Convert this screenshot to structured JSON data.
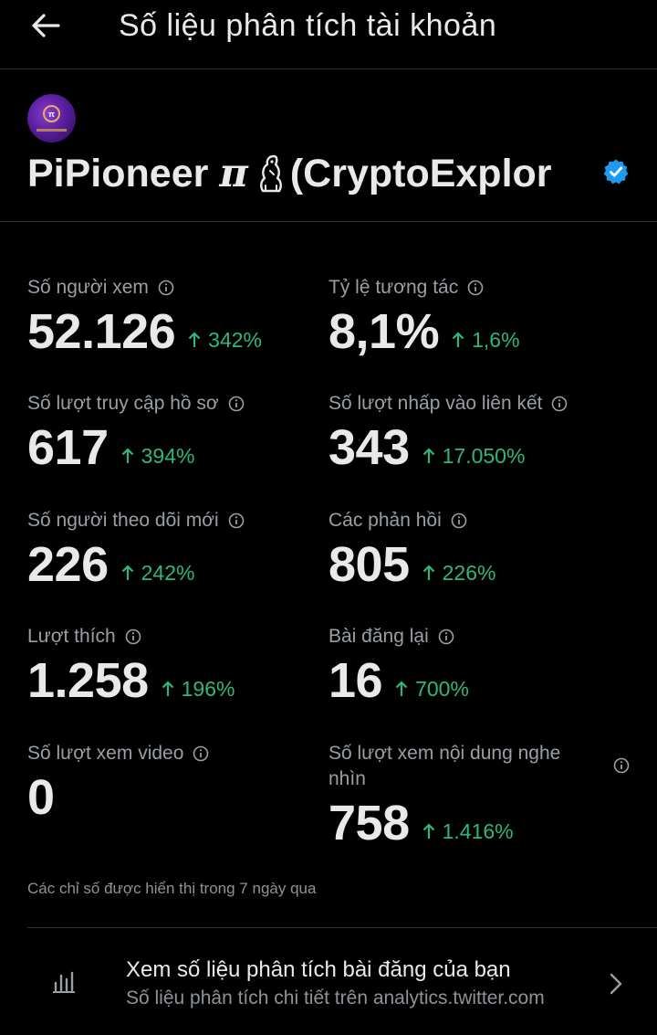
{
  "header": {
    "title": "Số liệu phân tích tài khoản"
  },
  "profile": {
    "name_part1": "PiPioneer",
    "name_pi": "π",
    "name_part2": "(CryptoExplor",
    "verified": true
  },
  "stats": [
    {
      "label": "Số người xem",
      "value": "52.126",
      "change": "342%"
    },
    {
      "label": "Tỷ lệ tương tác",
      "value": "8,1%",
      "change": "1,6%"
    },
    {
      "label": "Số lượt truy cập hồ sơ",
      "value": "617",
      "change": "394%"
    },
    {
      "label": "Số lượt nhấp vào liên kết",
      "value": "343",
      "change": "17.050%"
    },
    {
      "label": "Số người theo dõi mới",
      "value": "226",
      "change": "242%"
    },
    {
      "label": "Các phản hồi",
      "value": "805",
      "change": "226%"
    },
    {
      "label": "Lượt thích",
      "value": "1.258",
      "change": "196%"
    },
    {
      "label": "Bài đăng lại",
      "value": "16",
      "change": "700%"
    },
    {
      "label": "Số lượt xem video",
      "value": "0",
      "change": ""
    },
    {
      "label": "Số lượt xem nội dung nghe nhìn",
      "value": "758",
      "change": "1.416%"
    }
  ],
  "footnote": "Các chỉ số được hiển thị trong 7 ngày qua",
  "link": {
    "title": "Xem số liệu phân tích bài đăng của bạn",
    "subtitle": "Số liệu phân tích chi tiết trên analytics.twitter.com"
  },
  "colors": {
    "background": "#000000",
    "text": "#e7e9ea",
    "muted": "#9a9fa4",
    "positive": "#2fb77a",
    "verified": "#1d9bf0",
    "divider": "#2f3336"
  }
}
